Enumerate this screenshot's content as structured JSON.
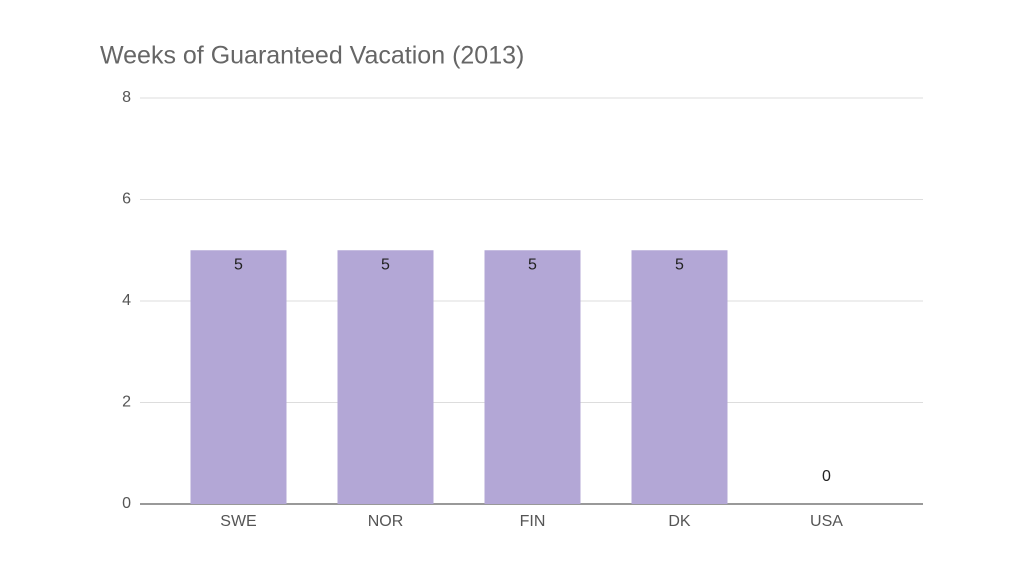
{
  "chart_data": {
    "type": "bar",
    "title": "Weeks of Guaranteed Vacation (2013)",
    "categories": [
      "SWE",
      "NOR",
      "FIN",
      "DK",
      "USA"
    ],
    "values": [
      5,
      5,
      5,
      5,
      0
    ],
    "color": "#b3a7d6",
    "ylim": [
      0,
      8
    ],
    "yticks": [
      0,
      2,
      4,
      6,
      8
    ],
    "grid": true
  }
}
